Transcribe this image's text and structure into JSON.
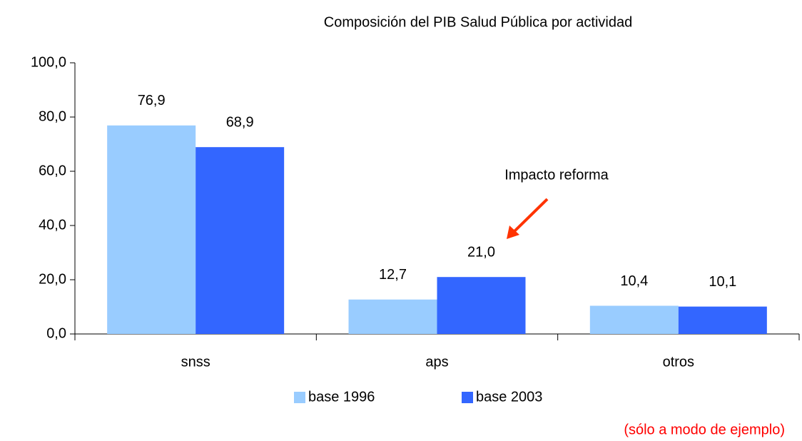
{
  "chart_data": {
    "type": "bar",
    "title": "Composición del PIB Salud Pública por actividad",
    "categories": [
      "snss",
      "aps",
      "otros"
    ],
    "series": [
      {
        "name": "base 1996",
        "color": "#99ccff",
        "values": [
          76.9,
          12.7,
          10.4
        ],
        "value_labels": [
          "76,9",
          "12,7",
          "10,4"
        ]
      },
      {
        "name": "base 2003",
        "color": "#3366ff",
        "values": [
          68.9,
          21.0,
          10.1
        ],
        "value_labels": [
          "68,9",
          "21,0",
          "10,1"
        ]
      }
    ],
    "ylim": [
      0,
      100
    ],
    "yticks": [
      {
        "value": 0,
        "label": "0,0"
      },
      {
        "value": 20,
        "label": "20,0"
      },
      {
        "value": 40,
        "label": "40,0"
      },
      {
        "value": 60,
        "label": "60,0"
      },
      {
        "value": 80,
        "label": "80,0"
      },
      {
        "value": 100,
        "label": "100,0"
      }
    ],
    "annotations": [
      "Impacto reforma",
      "(sólo a modo de ejemplo)"
    ],
    "legend": "bottom"
  }
}
